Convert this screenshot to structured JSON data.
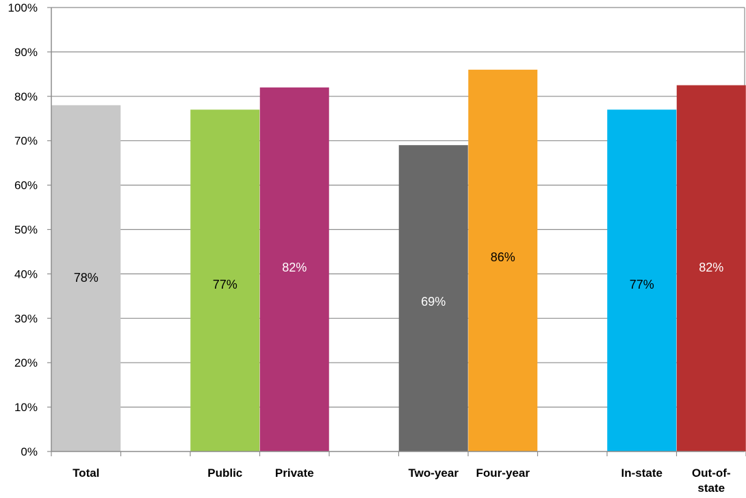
{
  "chart_data": {
    "type": "bar",
    "title": "",
    "xlabel": "",
    "ylabel": "",
    "ylim": [
      0,
      100
    ],
    "y_ticks": [
      "0%",
      "10%",
      "20%",
      "30%",
      "40%",
      "50%",
      "60%",
      "70%",
      "80%",
      "90%",
      "100%"
    ],
    "grid": true,
    "legend": "none",
    "categories": [
      {
        "label": "Total",
        "slot": 0
      },
      {
        "label": "Public",
        "slot": 2
      },
      {
        "label": "Private",
        "slot": 3
      },
      {
        "label": "Two-year",
        "slot": 5
      },
      {
        "label": "Four-year",
        "slot": 6
      },
      {
        "label": "In-state",
        "slot": 8
      },
      {
        "label": "Out-of-state",
        "label_lines": [
          "Out-of-",
          "state"
        ],
        "slot": 9
      }
    ],
    "values": [
      78,
      77,
      82,
      69,
      86,
      77,
      82.5
    ],
    "data_labels": [
      "78%",
      "77%",
      "82%",
      "69%",
      "86%",
      "77%",
      "82%"
    ],
    "colors": [
      "#c8c8c8",
      "#9dcb4e",
      "#b03574",
      "#696969",
      "#f7a426",
      "#00b6ee",
      "#b63030"
    ],
    "label_colors": [
      "#000000",
      "#000000",
      "#ffffff",
      "#ffffff",
      "#000000",
      "#000000",
      "#ffffff"
    ]
  }
}
